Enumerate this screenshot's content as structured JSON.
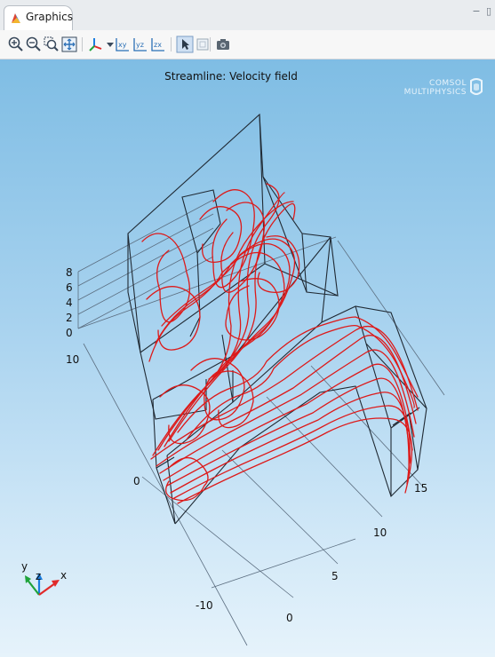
{
  "tab": {
    "label": "Graphics"
  },
  "toolbar": {
    "buttons": [
      "zoom-in-icon",
      "zoom-out-icon",
      "zoom-box-icon",
      "zoom-extents-icon",
      "view-axis-icon",
      "view-xy-icon",
      "view-yz-icon",
      "view-zx-icon",
      "select-icon",
      "transparency-icon",
      "screenshot-icon"
    ],
    "view_labels": {
      "xy": "xy",
      "yz": "yz",
      "zx": "zx"
    }
  },
  "plot": {
    "title": "Streamline: Velocity field",
    "brand_line1": "COMSOL",
    "brand_line2": "MULTIPHYSICS"
  },
  "axes": {
    "z_ticks": [
      "8",
      "6",
      "4",
      "2",
      "0"
    ],
    "y_ticks": [
      "10",
      "0",
      "-10"
    ],
    "x_ticks": [
      "0",
      "5",
      "10",
      "15"
    ]
  },
  "triad": {
    "x": "x",
    "y": "y",
    "z": "z"
  },
  "colors": {
    "streamline": "#dd1a1a",
    "background_top": "#7fbde4",
    "background_bottom": "#e6f3fb"
  }
}
